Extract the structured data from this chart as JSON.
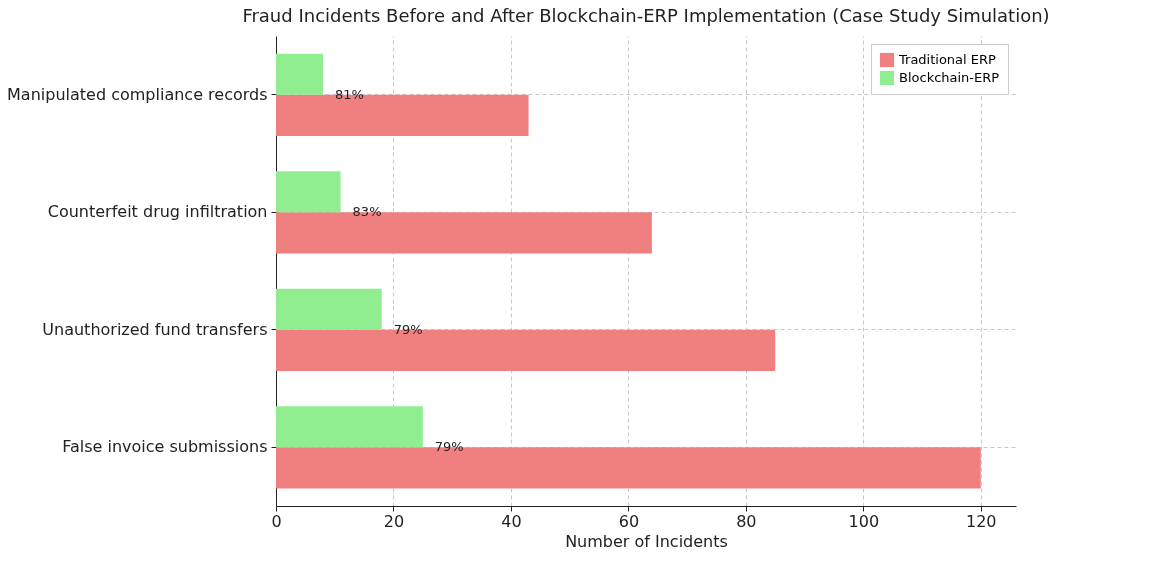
{
  "chart_data": {
    "type": "bar",
    "orientation": "horizontal",
    "title": "Fraud Incidents Before and After Blockchain-ERP Implementation (Case Study Simulation)",
    "xlabel": "Number of Incidents",
    "categories": [
      "Manipulated compliance records",
      "Counterfeit drug infiltration",
      "Unauthorized fund transfers",
      "False invoice submissions"
    ],
    "series": [
      {
        "name": "Traditional ERP",
        "color": "#f08080",
        "values": [
          43,
          64,
          85,
          120
        ]
      },
      {
        "name": "Blockchain-ERP",
        "color": "#90ee90",
        "values": [
          8,
          11,
          18,
          25
        ]
      }
    ],
    "annotations": [
      {
        "text": "81%",
        "x": 8,
        "y": "Manipulated compliance records"
      },
      {
        "text": "83%",
        "x": 11,
        "y": "Counterfeit drug infiltration"
      },
      {
        "text": "79%",
        "x": 18,
        "y": "Unauthorized fund transfers"
      },
      {
        "text": "79%",
        "x": 25,
        "y": "False invoice submissions"
      }
    ],
    "xlim": [
      0,
      126
    ],
    "xticks": [
      0,
      20,
      40,
      60,
      80,
      100,
      120
    ],
    "grid": true,
    "legend": "top right"
  }
}
